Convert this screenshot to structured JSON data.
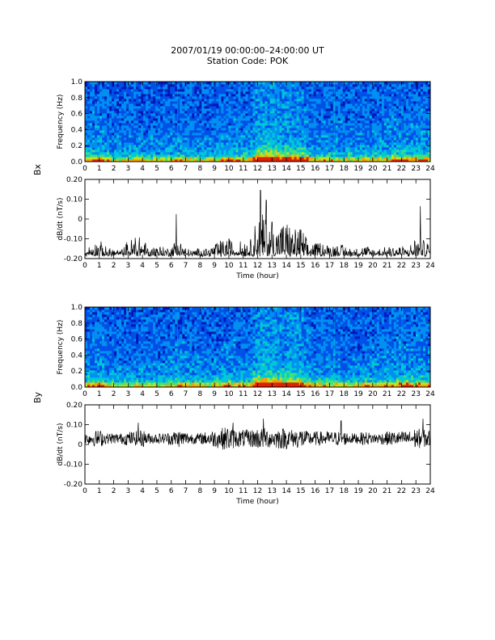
{
  "header": {
    "title": "2007/01/19 00:00:00–24:00:00 UT",
    "subtitle": "Station Code: POK"
  },
  "chart_data": [
    {
      "type": "heatmap",
      "component": "Bx",
      "xlabel": "",
      "ylabel": "Frequency (Hz)",
      "xlim": [
        0,
        24
      ],
      "ylim": [
        0,
        1.0
      ],
      "xticks": [
        "0",
        "1",
        "2",
        "3",
        "4",
        "5",
        "6",
        "7",
        "8",
        "9",
        "10",
        "11",
        "12",
        "13",
        "14",
        "15",
        "16",
        "17",
        "18",
        "19",
        "20",
        "21",
        "22",
        "23",
        "24"
      ],
      "yticks": [
        "0.0",
        "0.2",
        "0.4",
        "0.6",
        "0.8",
        "1.0"
      ],
      "colors": [
        "#00006e",
        "#0018b8",
        "#0050e8",
        "#0090f0",
        "#00c8d8",
        "#40e080",
        "#c0e020",
        "#f8a000",
        "#e02000"
      ],
      "hours": [
        0,
        0.5,
        1,
        1.5,
        2,
        2.5,
        3,
        3.5,
        4,
        4.5,
        5,
        5.5,
        6,
        6.5,
        7,
        7.5,
        8,
        8.5,
        9,
        9.5,
        10,
        10.5,
        11,
        11.5,
        12,
        12.5,
        13,
        13.5,
        14,
        14.5,
        15,
        15.5,
        16,
        16.5,
        17,
        17.5,
        18,
        18.5,
        19,
        19.5,
        20,
        20.5,
        21,
        21.5,
        22,
        22.5,
        23,
        23.5,
        24
      ],
      "activity": [
        0.45,
        0.5,
        0.55,
        0.45,
        0.35,
        0.35,
        0.35,
        0.4,
        0.4,
        0.35,
        0.35,
        0.35,
        0.4,
        0.45,
        0.45,
        0.4,
        0.35,
        0.35,
        0.4,
        0.45,
        0.55,
        0.5,
        0.45,
        0.45,
        0.9,
        1.0,
        0.95,
        0.85,
        0.8,
        0.85,
        0.8,
        0.55,
        0.45,
        0.45,
        0.45,
        0.45,
        0.4,
        0.4,
        0.4,
        0.45,
        0.45,
        0.45,
        0.5,
        0.55,
        0.6,
        0.55,
        0.55,
        0.55,
        0.5
      ]
    },
    {
      "type": "line",
      "component": "Bx",
      "xlabel": "Time (hour)",
      "ylabel": "dB/dt (nT/s)",
      "xlim": [
        0,
        24
      ],
      "ylim": [
        -0.2,
        0.2
      ],
      "xticks": [
        "0",
        "1",
        "2",
        "3",
        "4",
        "5",
        "6",
        "7",
        "8",
        "9",
        "10",
        "11",
        "12",
        "13",
        "14",
        "15",
        "16",
        "17",
        "18",
        "19",
        "20",
        "21",
        "22",
        "23",
        "24"
      ],
      "yticks": [
        "-0.20",
        "-0.10",
        "0",
        "0.10",
        "0.20"
      ],
      "baseline": -0.185,
      "x": [
        0,
        0.5,
        1,
        1.5,
        2,
        2.5,
        3,
        3.5,
        4,
        4.5,
        5,
        5.5,
        6,
        6.5,
        7,
        7.5,
        8,
        8.5,
        9,
        9.5,
        10,
        10.5,
        11,
        11.5,
        12,
        12.5,
        13,
        13.5,
        14,
        14.5,
        15,
        15.5,
        16,
        16.5,
        17,
        17.5,
        18,
        18.5,
        19,
        19.5,
        20,
        20.5,
        21,
        21.5,
        22,
        22.5,
        23,
        23.5,
        24
      ],
      "envelope": [
        0.02,
        0.05,
        0.06,
        0.03,
        0.03,
        0.02,
        0.06,
        0.07,
        0.08,
        0.02,
        0.05,
        0.03,
        0.04,
        0.08,
        0.03,
        0.02,
        0.03,
        0.03,
        0.05,
        0.06,
        0.07,
        0.05,
        0.07,
        0.06,
        0.17,
        0.16,
        0.1,
        0.13,
        0.14,
        0.1,
        0.12,
        0.05,
        0.05,
        0.06,
        0.04,
        0.05,
        0.04,
        0.03,
        0.03,
        0.04,
        0.03,
        0.03,
        0.04,
        0.04,
        0.04,
        0.03,
        0.08,
        0.06,
        0.06
      ],
      "spikes": [
        [
          6.35,
          0.21
        ],
        [
          12.2,
          0.33
        ],
        [
          12.6,
          0.28
        ],
        [
          13.0,
          0.17
        ],
        [
          3.5,
          0.09
        ],
        [
          23.3,
          0.25
        ]
      ]
    },
    {
      "type": "heatmap",
      "component": "By",
      "xlabel": "",
      "ylabel": "Frequency (Hz)",
      "xlim": [
        0,
        24
      ],
      "ylim": [
        0,
        1.0
      ],
      "xticks": [
        "0",
        "1",
        "2",
        "3",
        "4",
        "5",
        "6",
        "7",
        "8",
        "9",
        "10",
        "11",
        "12",
        "13",
        "14",
        "15",
        "16",
        "17",
        "18",
        "19",
        "20",
        "21",
        "22",
        "23",
        "24"
      ],
      "yticks": [
        "0.0",
        "0.2",
        "0.4",
        "0.6",
        "0.8",
        "1.0"
      ],
      "colors": [
        "#00006e",
        "#0018b8",
        "#0050e8",
        "#0090f0",
        "#00c8d8",
        "#40e080",
        "#c0e020",
        "#f8a000",
        "#e02000"
      ],
      "hours": [
        0,
        0.5,
        1,
        1.5,
        2,
        2.5,
        3,
        3.5,
        4,
        4.5,
        5,
        5.5,
        6,
        6.5,
        7,
        7.5,
        8,
        8.5,
        9,
        9.5,
        10,
        10.5,
        11,
        11.5,
        12,
        12.5,
        13,
        13.5,
        14,
        14.5,
        15,
        15.5,
        16,
        16.5,
        17,
        17.5,
        18,
        18.5,
        19,
        19.5,
        20,
        20.5,
        21,
        21.5,
        22,
        22.5,
        23,
        23.5,
        24
      ],
      "activity": [
        0.5,
        0.55,
        0.6,
        0.5,
        0.4,
        0.35,
        0.35,
        0.35,
        0.4,
        0.35,
        0.35,
        0.35,
        0.4,
        0.5,
        0.5,
        0.45,
        0.4,
        0.35,
        0.4,
        0.45,
        0.55,
        0.5,
        0.45,
        0.45,
        0.95,
        1.05,
        1.0,
        0.9,
        0.85,
        0.9,
        0.85,
        0.55,
        0.45,
        0.45,
        0.45,
        0.45,
        0.4,
        0.4,
        0.4,
        0.45,
        0.45,
        0.45,
        0.5,
        0.55,
        0.6,
        0.55,
        0.55,
        0.55,
        0.5
      ]
    },
    {
      "type": "line",
      "component": "By",
      "xlabel": "Time (hour)",
      "ylabel": "dB/dt (nT/s)",
      "xlim": [
        0,
        24
      ],
      "ylim": [
        -0.2,
        0.2
      ],
      "xticks": [
        "0",
        "1",
        "2",
        "3",
        "4",
        "5",
        "6",
        "7",
        "8",
        "9",
        "10",
        "11",
        "12",
        "13",
        "14",
        "15",
        "16",
        "17",
        "18",
        "19",
        "20",
        "21",
        "22",
        "23",
        "24"
      ],
      "yticks": [
        "-0.20",
        "-0.10",
        "0",
        "0.10",
        "0.20"
      ],
      "baseline": 0.03,
      "x": [
        0,
        0.5,
        1,
        1.5,
        2,
        2.5,
        3,
        3.5,
        4,
        4.5,
        5,
        5.5,
        6,
        6.5,
        7,
        7.5,
        8,
        8.5,
        9,
        9.5,
        10,
        10.5,
        11,
        11.5,
        12,
        12.5,
        13,
        13.5,
        14,
        14.5,
        15,
        15.5,
        16,
        16.5,
        17,
        17.5,
        18,
        18.5,
        19,
        19.5,
        20,
        20.5,
        21,
        21.5,
        22,
        22.5,
        23,
        23.5,
        24
      ],
      "envelope": [
        0.03,
        0.04,
        0.05,
        0.03,
        0.03,
        0.03,
        0.04,
        0.04,
        0.05,
        0.03,
        0.03,
        0.03,
        0.04,
        0.05,
        0.04,
        0.03,
        0.03,
        0.04,
        0.05,
        0.06,
        0.07,
        0.05,
        0.05,
        0.05,
        0.06,
        0.06,
        0.05,
        0.06,
        0.06,
        0.05,
        0.06,
        0.04,
        0.04,
        0.04,
        0.04,
        0.04,
        0.04,
        0.03,
        0.03,
        0.04,
        0.03,
        0.03,
        0.04,
        0.04,
        0.04,
        0.04,
        0.06,
        0.05,
        0.05
      ],
      "spikes": [
        [
          3.7,
          0.08
        ],
        [
          10.3,
          0.08
        ],
        [
          12.4,
          0.1
        ],
        [
          17.8,
          0.09
        ],
        [
          23.5,
          0.1
        ]
      ]
    }
  ],
  "panels": {
    "bx_label": "Bx",
    "by_label": "By"
  }
}
